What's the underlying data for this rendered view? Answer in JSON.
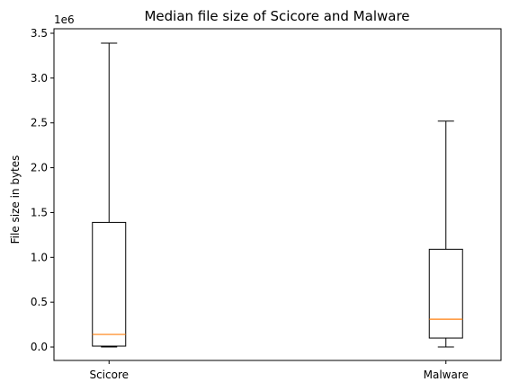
{
  "chart_data": {
    "type": "box",
    "title": "Median file size of Scicore and Malware",
    "xlabel": "",
    "ylabel": "File size in bytes",
    "y_scale_label": "1e6",
    "ylim": [
      -150000,
      3550000
    ],
    "y_ticks": [
      0,
      500000,
      1000000,
      1500000,
      2000000,
      2500000,
      3000000,
      3500000
    ],
    "y_tick_labels": [
      "0.0",
      "0.5",
      "1.0",
      "1.5",
      "2.0",
      "2.5",
      "3.0",
      "3.5"
    ],
    "categories": [
      "Scicore",
      "Malware"
    ],
    "boxes": [
      {
        "name": "Scicore",
        "whisker_low": 0,
        "q1": 10000,
        "median": 140000,
        "q3": 1390000,
        "whisker_high": 3390000
      },
      {
        "name": "Malware",
        "whisker_low": 0,
        "q1": 100000,
        "median": 310000,
        "q3": 1090000,
        "whisker_high": 2520000
      }
    ],
    "grid": false,
    "colors": {
      "box": "#000000",
      "median": "#ff7f0e"
    }
  }
}
